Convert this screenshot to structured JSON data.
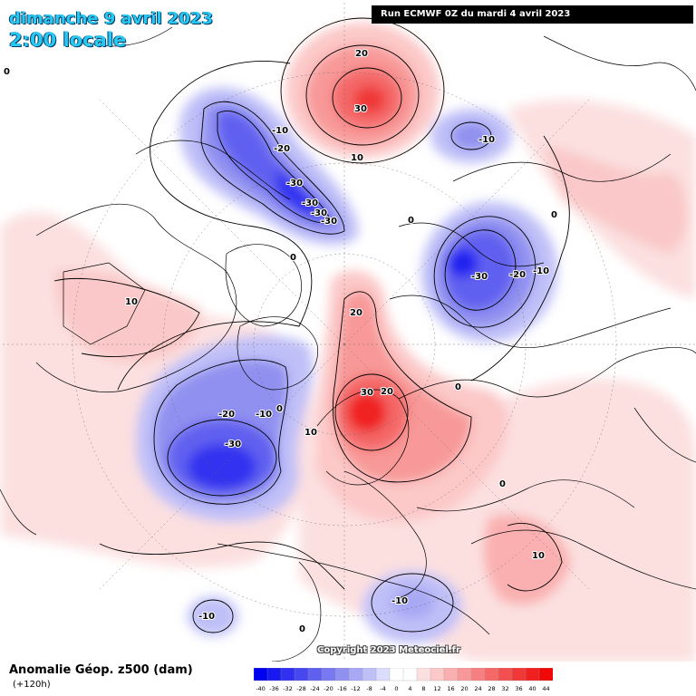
{
  "header": {
    "date": "dimanche 9 avril 2023",
    "time": "2:00 locale",
    "run": "Run ECMWF 0Z du mardi 4 avril 2023"
  },
  "footer": {
    "variable": "Anomalie Géop. z500 (dam)",
    "lead_time": "(+120h)",
    "copyright": "Copyright 2023 Meteociel.fr"
  },
  "legend": {
    "labels": [
      "-40",
      "-36",
      "-32",
      "-28",
      "-24",
      "-20",
      "-16",
      "-12",
      "-8",
      "-4",
      "0",
      "4",
      "8",
      "12",
      "16",
      "20",
      "24",
      "28",
      "32",
      "36",
      "40",
      "44"
    ],
    "colors": [
      "#0000f0",
      "#1818f0",
      "#3030f0",
      "#4848f0",
      "#6060f0",
      "#7878f0",
      "#9090f0",
      "#a8a8f4",
      "#c0c0f8",
      "#dcdcfc",
      "#ffffff",
      "#ffffff",
      "#fce0e0",
      "#fcc8c8",
      "#fab0b0",
      "#f89898",
      "#f68080",
      "#f46868",
      "#f25050",
      "#f03838",
      "#f02020",
      "#f00808"
    ]
  },
  "map": {
    "land_color": "#ffffff",
    "contour_labels": [
      "20",
      "30",
      "10",
      "-10",
      "-20",
      "-30",
      "-30",
      "-30",
      "-30",
      "0",
      "-10",
      "0",
      "-30",
      "-20",
      "-10",
      "0",
      "10",
      "20",
      "30",
      "20",
      "0",
      "-20",
      "-10",
      "0",
      "-30",
      "10",
      "0",
      "10",
      "-10",
      "-10",
      "0",
      "0"
    ]
  }
}
